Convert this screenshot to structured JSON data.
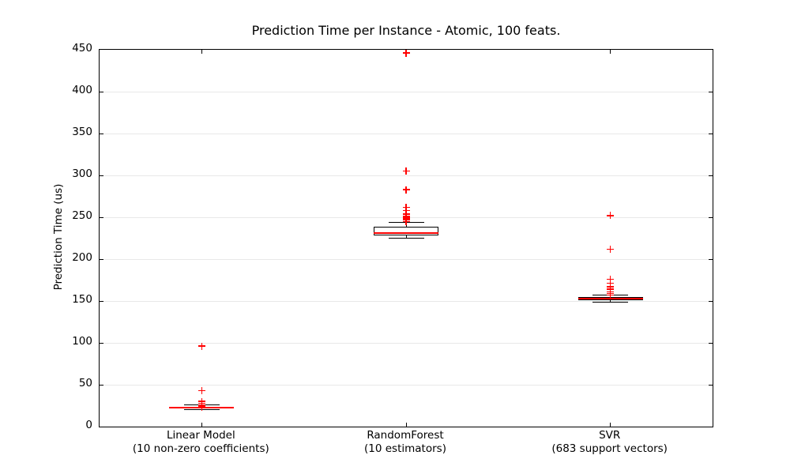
{
  "figure": {
    "background": "#ffffff",
    "axis_color": "#000000",
    "grid_color": "#e8e8e8"
  },
  "chart_data": {
    "type": "boxplot",
    "title": "Prediction Time per Instance - Atomic, 100 feats.",
    "ylabel": "Prediction Time (us)",
    "xlabel": "",
    "ylim": [
      0,
      450
    ],
    "yticks": [
      0,
      50,
      100,
      150,
      200,
      250,
      300,
      350,
      400,
      450
    ],
    "grid": true,
    "legend": "none",
    "box_color": "#000000",
    "median_color": "#ff0000",
    "flier_color": "#ff0000",
    "flier_marker": "+",
    "categories": [
      {
        "label": "Linear Model",
        "sublabel": "(10 non-zero coefficients)"
      },
      {
        "label": "RandomForest",
        "sublabel": "(10 estimators)"
      },
      {
        "label": "SVR",
        "sublabel": "(683 support vectors)"
      }
    ],
    "series": [
      {
        "name": "Linear Model",
        "whisker_low": 20,
        "q1": 21.5,
        "median": 22.5,
        "q3": 24,
        "whisker_high": 26,
        "fliers": [
          96,
          43,
          30,
          28,
          26,
          25.5,
          25,
          24.5,
          24,
          23.5,
          23
        ]
      },
      {
        "name": "RandomForest",
        "whisker_low": 225,
        "q1": 228,
        "median": 231,
        "q3": 239,
        "whisker_high": 244,
        "fliers": [
          446,
          305,
          283,
          262,
          258,
          254,
          251,
          249,
          247,
          245
        ]
      },
      {
        "name": "SVR",
        "whisker_low": 149,
        "q1": 151,
        "median": 153,
        "q3": 155,
        "whisker_high": 157,
        "fliers": [
          252,
          212,
          176,
          171,
          167,
          164,
          161,
          159,
          157
        ]
      }
    ]
  }
}
